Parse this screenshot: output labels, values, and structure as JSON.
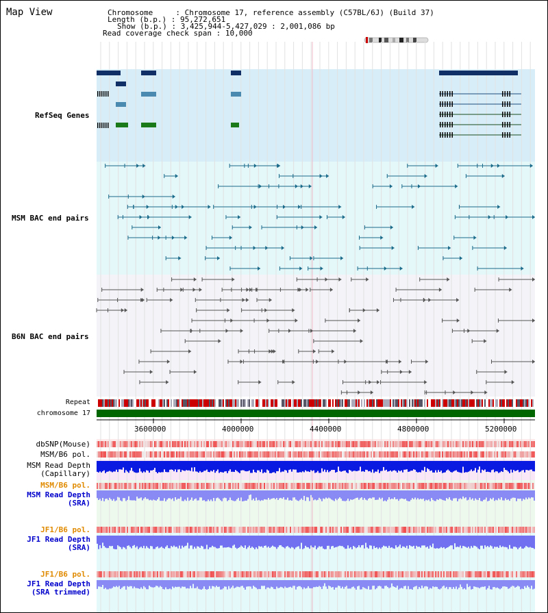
{
  "title": "Map View",
  "info": {
    "chromosome_key": "Chromosome",
    "chromosome_val": "Chromosome 17, reference assembly (C57BL/6J) (Build 37)",
    "length_key": "Length (b.p.)",
    "length_val": "95,272,651",
    "show_key": "Show (b.p.)",
    "show_val": "3,425,944-5,427,029 : 2,001,086 bp",
    "coverage_key": "Read coverage check span",
    "coverage_val": "10,000"
  },
  "tracks": {
    "refseq": "RefSeq Genes",
    "msm_bac": "MSM BAC end pairs",
    "b6n_bac": "B6N BAC end pairs",
    "repeat": "Repeat",
    "chromosome": "chromosome 17",
    "dbsnp": "dbSNP(Mouse)",
    "msm_b6_pol_1": "MSM/B6 pol.",
    "msm_depth_cap_1": "MSM Read Depth",
    "msm_depth_cap_2": "(Capillary)",
    "msm_b6_pol_2": "MSM/B6 pol.",
    "msm_depth_sra_1": "MSM Read Depth",
    "msm_depth_sra_2": "(SRA)",
    "jf1_b6_pol_1": "JF1/B6 pol.",
    "jf1_depth_sra_1": "JF1 Read Depth",
    "jf1_depth_sra_2": "(SRA)",
    "jf1_b6_pol_2": "JF1/B6 pol.",
    "jf1_depth_trim_1": "JF1 Read Depth",
    "jf1_depth_trim_2": "(SRA trimmed)"
  },
  "axis": {
    "ticks": [
      "3600000",
      "4000000",
      "4400000",
      "4800000",
      "5200000"
    ]
  },
  "colors": {
    "refseq_label": "#1a1a99",
    "msm_label": "#1a5f8a",
    "b6n_label": "#555555",
    "orange": "#e08a00",
    "blue": "#0000cc",
    "chrom_green": "#006600"
  }
}
